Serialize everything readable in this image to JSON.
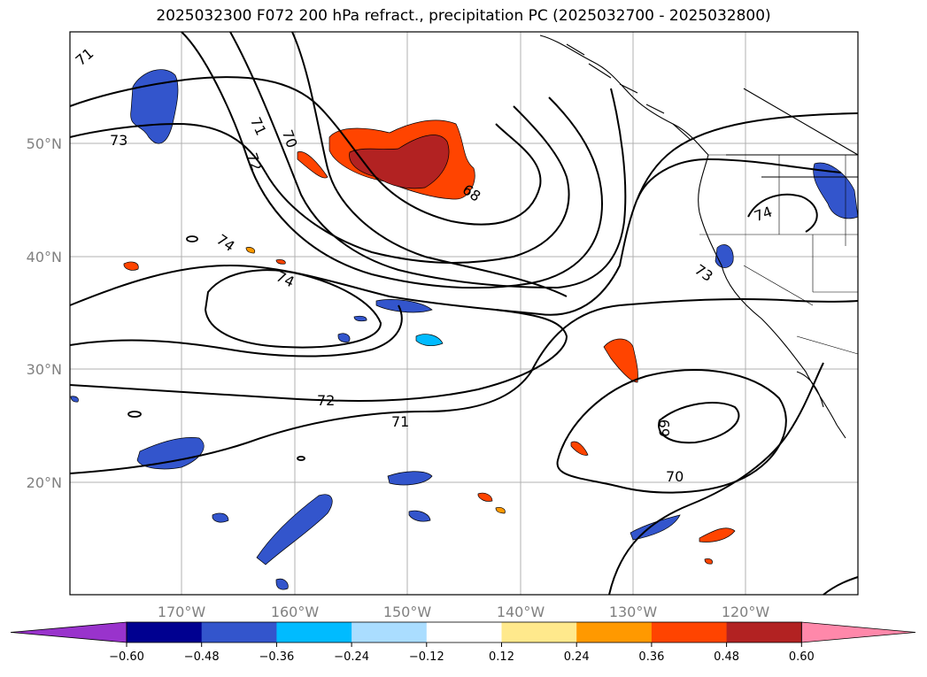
{
  "title": "2025032300 F072 200 hPa refract., precipitation PC (2025032700 - 2025032800)",
  "map": {
    "lon_labels": [
      "170°W",
      "160°W",
      "150°W",
      "140°W",
      "130°W",
      "120°W"
    ],
    "lat_labels": [
      "50°N",
      "40°N",
      "30°N",
      "20°N"
    ],
    "contour_labels": [
      "71",
      "73",
      "71",
      "70",
      "72",
      "68",
      "74",
      "74",
      "72",
      "71",
      "73",
      "74",
      "69",
      "70"
    ],
    "contour_color": "#000000",
    "grid_color": "#b0b0b0",
    "coast_color": "#000000"
  },
  "colorbar": {
    "ticks": [
      "−0.60",
      "−0.48",
      "−0.36",
      "−0.24",
      "−0.12",
      "0.12",
      "0.24",
      "0.36",
      "0.48",
      "0.60"
    ],
    "colors": [
      "#9933cc",
      "#000090",
      "#3355cc",
      "#00bbff",
      "#aaddff",
      "#ffffff",
      "#ffe98c",
      "#ff9900",
      "#ff4400",
      "#b22222",
      "#ff88aa"
    ]
  }
}
